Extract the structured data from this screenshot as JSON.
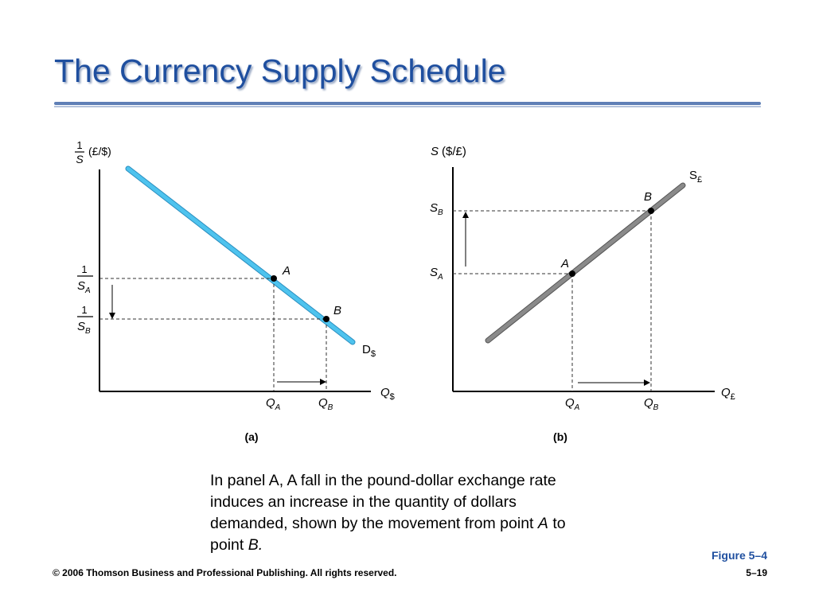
{
  "slide": {
    "title": "The Currency Supply Schedule",
    "figure_label": "Figure 5–4",
    "copyright": "© 2006 Thomson Business and Professional Publishing. All rights reserved.",
    "page_number": "5–19"
  },
  "caption": {
    "text_1": "In panel A, A fall in the pound-dollar exchange rate induces an increase in the quantity of dollars demanded, shown by the movement from point ",
    "point_a": "A",
    "text_2": " to point ",
    "point_b": "B."
  },
  "panel_a": {
    "label": "(a)",
    "y_axis_label_numerator": "1",
    "y_axis_label_denominator": "S",
    "y_axis_unit": "(£/$)",
    "x_axis_label": "Q",
    "x_axis_subscript": "$",
    "tick_y_a_num": "1",
    "tick_y_a_den": "S",
    "tick_y_a_sub": "A",
    "tick_y_b_num": "1",
    "tick_y_b_den": "S",
    "tick_y_b_sub": "B",
    "tick_x_a": "Q",
    "tick_x_a_sub": "A",
    "tick_x_b": "Q",
    "tick_x_b_sub": "B",
    "curve_label": "D",
    "curve_subscript": "$",
    "point_a_label": "A",
    "point_b_label": "B",
    "curve_color": "#4ec3ee"
  },
  "panel_b": {
    "label": "(b)",
    "y_axis_label": "S",
    "y_axis_unit": "($/£)",
    "x_axis_label": "Q",
    "x_axis_subscript": "£",
    "tick_y_a": "S",
    "tick_y_a_sub": "A",
    "tick_y_b": "S",
    "tick_y_b_sub": "B",
    "tick_x_a": "Q",
    "tick_x_a_sub": "A",
    "tick_x_b": "Q",
    "tick_x_b_sub": "B",
    "curve_label": "S",
    "curve_subscript": "£",
    "point_a_label": "A",
    "point_b_label": "B",
    "curve_color": "#8a8a8a"
  }
}
